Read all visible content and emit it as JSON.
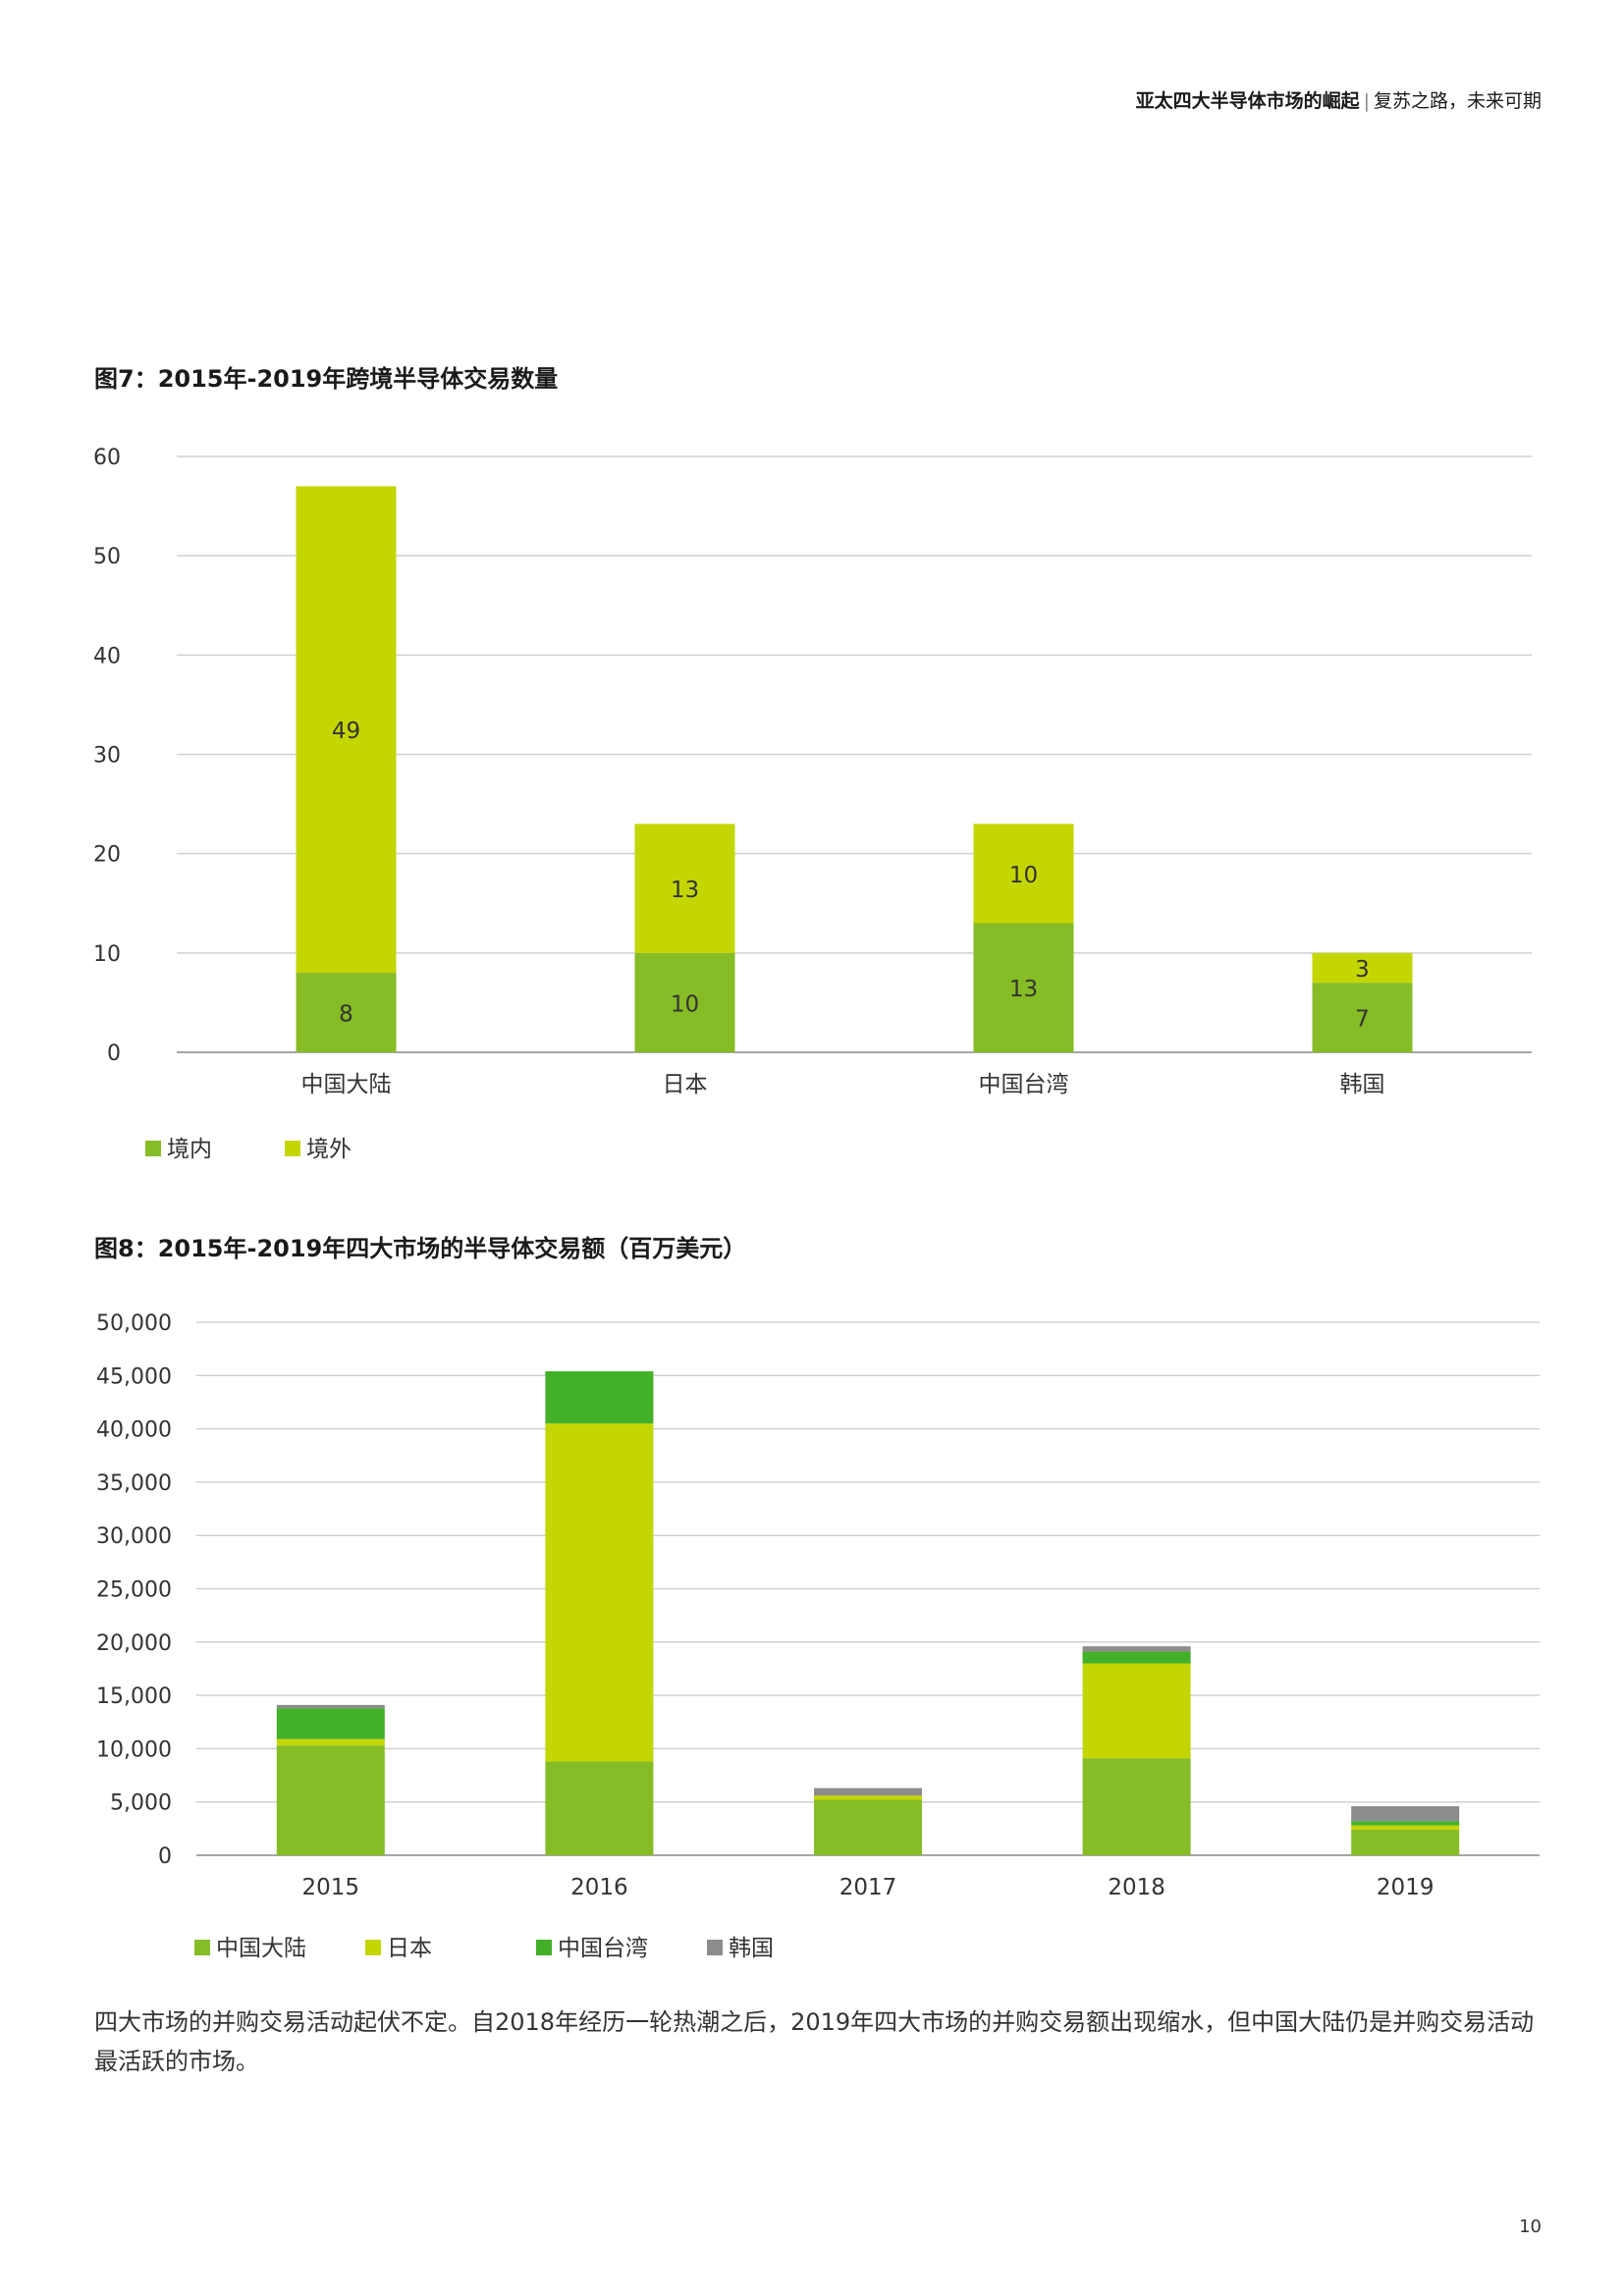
{
  "header": {
    "title_bold": "亚太四大半导体市场的崛起",
    "separator": "|",
    "subtitle": "复苏之路，未来可期"
  },
  "figure7": {
    "title": "图7：2015年-2019年跨境半导体交易数量"
  },
  "figure8": {
    "title": "图8：2015年-2019年四大市场的半导体交易额（百万美元）"
  },
  "colors": {
    "mainland": "#86bc25",
    "overseas": "#c4d600",
    "taiwan": "#43b02a",
    "korea": "#8c8c8c",
    "grid": "#d0d0d0",
    "axis": "#888888"
  },
  "chart_data": [
    {
      "type": "bar",
      "stacked": true,
      "title": "图7：2015年-2019年跨境半导体交易数量",
      "categories": [
        "中国大陆",
        "日本",
        "中国台湾",
        "韩国"
      ],
      "series": [
        {
          "name": "境内",
          "color": "#86bc25",
          "values": [
            8,
            10,
            13,
            7
          ]
        },
        {
          "name": "境外",
          "color": "#c4d600",
          "values": [
            49,
            13,
            10,
            3
          ]
        }
      ],
      "ylim": [
        0,
        60
      ],
      "yticks": [
        "0",
        "10",
        "20",
        "30",
        "40",
        "50",
        "60"
      ],
      "grid": true,
      "legend": "bottom-left",
      "data_labels": true
    },
    {
      "type": "bar",
      "stacked": true,
      "title": "图8：2015年-2019年四大市场的半导体交易额（百万美元）",
      "categories": [
        "2015",
        "2016",
        "2017",
        "2018",
        "2019"
      ],
      "series": [
        {
          "name": "中国大陆",
          "color": "#86bc25",
          "values": [
            10300,
            8800,
            5200,
            9100,
            2400
          ]
        },
        {
          "name": "日本",
          "color": "#c4d600",
          "values": [
            600,
            31700,
            400,
            8900,
            400
          ]
        },
        {
          "name": "中国台湾",
          "color": "#43b02a",
          "values": [
            2900,
            4900,
            0,
            1100,
            400
          ]
        },
        {
          "name": "韩国",
          "color": "#8c8c8c",
          "values": [
            300,
            0,
            700,
            500,
            1400
          ]
        }
      ],
      "ylim": [
        0,
        50000
      ],
      "yticks": [
        "0",
        "5,000",
        "10,000",
        "15,000",
        "20,000",
        "25,000",
        "30,000",
        "35,000",
        "40,000",
        "45,000",
        "50,000"
      ],
      "grid": true,
      "legend": "bottom-left",
      "data_labels": false
    }
  ],
  "body_text": "四大市场的并购交易活动起伏不定。自2018年经历一轮热潮之后，2019年四大市场的并购交易额出现缩水，但中国大陆仍是并购交易活动最活跃的市场。",
  "page_number": "10"
}
